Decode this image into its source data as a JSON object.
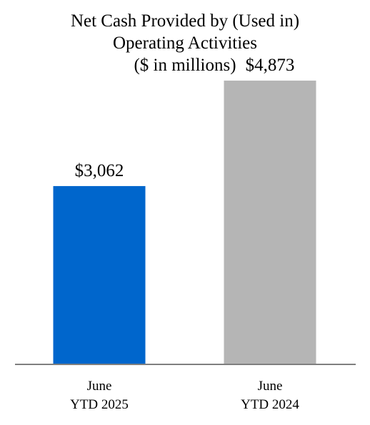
{
  "chart_data": {
    "type": "bar",
    "title_lines": [
      "Net Cash Provided by (Used in)",
      "Operating Activities",
      "($ in millions)"
    ],
    "categories": [
      [
        "June",
        "YTD 2025"
      ],
      [
        "June",
        "YTD 2024"
      ]
    ],
    "values": [
      3062,
      4873
    ],
    "data_labels": [
      "$3,062",
      "$4,873"
    ],
    "colors": [
      "#0066cc",
      "#b5b5b5"
    ],
    "axis_color": "#7f7f7f",
    "ylim": [
      0,
      5400
    ],
    "grid": false,
    "legend": "none",
    "xlabel": "",
    "ylabel": ""
  }
}
